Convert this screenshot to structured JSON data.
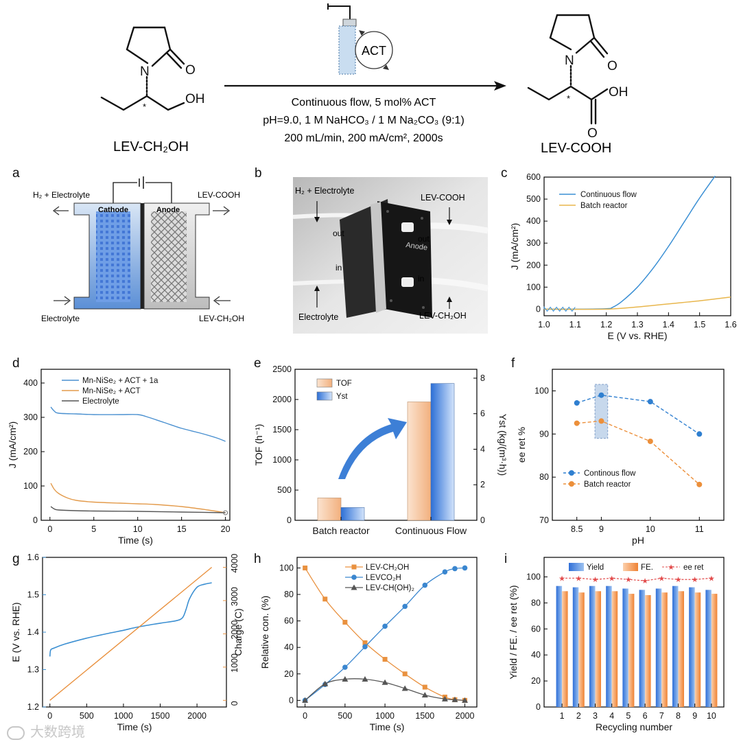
{
  "scheme": {
    "reactant_name": "LEV-CH₂OH",
    "product_name": "LEV-COOH",
    "catalyst_label": "ACT",
    "conditions": [
      "Continuous flow, 5 mol% ACT",
      "pH=9.0, 1 M NaHCO₃ / 1 M Na₂CO₃ (9:1)",
      "200 mL/min, 200 mA/cm², 2000s"
    ],
    "atoms": {
      "n": "N",
      "o": "O",
      "oh": "OH",
      "star": "*"
    }
  },
  "panel_a": {
    "letter": "a",
    "labels": {
      "h2_electrolyte": "H₂ + Electrolyte",
      "lev_cooh": "LEV-COOH",
      "cathode": "Cathode",
      "anode": "Anode",
      "electrolyte": "Electrolyte",
      "lev_ch2oh": "LEV-CH₂OH"
    }
  },
  "panel_b": {
    "letter": "b",
    "labels": {
      "h2_electrolyte": "H₂ + Electrolyte",
      "lev_cooh": "LEV-COOH",
      "out_left": "out",
      "out_right": "out",
      "in_left": "in",
      "in_right": "in",
      "anode": "Anode",
      "electrolyte": "Electrolyte",
      "lev_ch2oh": "LEV-CH₂OH"
    }
  },
  "chart_data": [
    {
      "panel": "c",
      "type": "line",
      "xlabel": "E (V vs. RHE)",
      "ylabel": "J (mA/cm²)",
      "xlim": [
        1.0,
        1.6
      ],
      "ylim": [
        -30,
        600
      ],
      "xticks": [
        "1.0",
        "1.1",
        "1.2",
        "1.3",
        "1.4",
        "1.5",
        "1.6"
      ],
      "yticks": [
        "0",
        "100",
        "200",
        "300",
        "400",
        "500",
        "600"
      ],
      "legend": "top-left",
      "series": [
        {
          "name": "Continuous flow",
          "color": "#3a8fd4",
          "x": [
            1.0,
            1.1,
            1.2,
            1.22,
            1.25,
            1.3,
            1.35,
            1.4,
            1.45,
            1.5,
            1.55
          ],
          "y": [
            0,
            0,
            2,
            8,
            35,
            100,
            185,
            285,
            395,
            505,
            605
          ]
        },
        {
          "name": "Batch reactor",
          "color": "#e8b64c",
          "x": [
            1.0,
            1.2,
            1.3,
            1.4,
            1.5,
            1.6
          ],
          "y": [
            0,
            0,
            10,
            24,
            38,
            55
          ]
        }
      ]
    },
    {
      "panel": "d",
      "type": "line",
      "xlabel": "Time (s)",
      "ylabel": "J (mA/cm²)",
      "xlim": [
        -1,
        20.5
      ],
      "ylim": [
        0,
        440
      ],
      "xticks": [
        "0",
        "5",
        "10",
        "15",
        "20"
      ],
      "yticks": [
        "0",
        "100",
        "200",
        "300",
        "400"
      ],
      "legend": "top-left",
      "series": [
        {
          "name": "Mn-NiSe₂ + ACT + 1a",
          "color": "#4a90d0",
          "x": [
            0.1,
            0.5,
            1,
            3,
            5,
            8,
            10,
            11,
            13,
            15,
            17,
            19,
            20
          ],
          "y": [
            330,
            318,
            312,
            310,
            308,
            308,
            308,
            302,
            285,
            268,
            255,
            240,
            230
          ]
        },
        {
          "name": "Mn-NiSe₂ + ACT",
          "color": "#e39a4a",
          "x": [
            0.1,
            0.5,
            1,
            2,
            3,
            5,
            8,
            10,
            12,
            15,
            18,
            20
          ],
          "y": [
            108,
            90,
            78,
            65,
            58,
            53,
            50,
            48,
            46,
            40,
            30,
            22
          ]
        },
        {
          "name": "Electrolyte",
          "color": "#555555",
          "x": [
            0.1,
            0.5,
            1,
            3,
            5,
            10,
            15,
            20
          ],
          "y": [
            40,
            33,
            30,
            28,
            27,
            26,
            24,
            22
          ]
        }
      ]
    },
    {
      "panel": "e",
      "type": "bar",
      "categories": [
        "Batch reactor",
        "Continuous Flow"
      ],
      "ylabel": "TOF (h⁻¹)",
      "y2label": "Yst (kg/(m³·h))",
      "ylim": [
        0,
        2500
      ],
      "y2lim": [
        0,
        8.5
      ],
      "yticks": [
        "0",
        "500",
        "1000",
        "1500",
        "2000",
        "2500"
      ],
      "y2ticks": [
        "0",
        "2",
        "4",
        "6",
        "8"
      ],
      "legend": "top-left",
      "series": [
        {
          "name": "TOF",
          "axis": "left",
          "color": "#f3b888",
          "values": [
            370,
            1960
          ]
        },
        {
          "name": "Yst",
          "axis": "right",
          "color": "#3f85dd",
          "values": [
            0.72,
            7.7
          ]
        }
      ]
    },
    {
      "panel": "f",
      "type": "line",
      "xlabel": "pH",
      "ylabel": "ee ret %",
      "xlim": [
        8.0,
        11.5
      ],
      "ylim": [
        70,
        105
      ],
      "xticks": [
        "8.5",
        "9",
        "10",
        "11"
      ],
      "yticks": [
        "70",
        "80",
        "90",
        "100"
      ],
      "legend": "bottom-left",
      "highlight": "pH 9",
      "series": [
        {
          "name": "Continous flow",
          "color": "#2f7fd0",
          "x": [
            8.5,
            9,
            10,
            11
          ],
          "y": [
            97.2,
            99,
            97.5,
            90
          ]
        },
        {
          "name": "Batch reactor",
          "color": "#ec8f3a",
          "x": [
            8.5,
            9,
            10,
            11
          ],
          "y": [
            92.5,
            93,
            88.3,
            78.3
          ]
        }
      ]
    },
    {
      "panel": "g",
      "type": "line",
      "xlabel": "Time (s)",
      "ylabel": "E (V vs. RHE)",
      "y2label": "Charge (C)",
      "xlim": [
        -100,
        2400
      ],
      "ylim": [
        1.2,
        1.6
      ],
      "y2lim": [
        -200,
        4300
      ],
      "xticks": [
        "0",
        "500",
        "1000",
        "1500",
        "2000"
      ],
      "yticks": [
        "1.2",
        "1.3",
        "1.4",
        "1.5",
        "1.6"
      ],
      "y2ticks": [
        "0",
        "1000",
        "2000",
        "3000",
        "4000"
      ],
      "series": [
        {
          "name": "E",
          "axis": "left",
          "color": "#3b8fd2",
          "x": [
            0,
            10,
            50,
            200,
            500,
            800,
            1000,
            1200,
            1500,
            1700,
            1800,
            1850,
            1900,
            2000,
            2100,
            2200
          ],
          "y": [
            1.335,
            1.352,
            1.357,
            1.368,
            1.384,
            1.397,
            1.405,
            1.414,
            1.424,
            1.43,
            1.438,
            1.46,
            1.49,
            1.52,
            1.528,
            1.532
          ]
        },
        {
          "name": "Charge",
          "axis": "right",
          "color": "#e9913f",
          "x": [
            0,
            2200
          ],
          "y": [
            0,
            4000
          ]
        }
      ]
    },
    {
      "panel": "h",
      "type": "line",
      "xlabel": "Time (s)",
      "ylabel": "Relative con. (%)",
      "xlim": [
        -100,
        2150
      ],
      "ylim": [
        -5,
        108
      ],
      "xticks": [
        "0",
        "500",
        "1000",
        "1500",
        "2000"
      ],
      "yticks": [
        "0",
        "20",
        "40",
        "60",
        "80",
        "100"
      ],
      "legend": "top-center",
      "series": [
        {
          "name": "LEV-CH₂OH",
          "color": "#e9913f",
          "marker": "square",
          "x": [
            0,
            250,
            500,
            750,
            1000,
            1250,
            1500,
            1750,
            1875,
            2000
          ],
          "y": [
            100,
            76.5,
            59,
            43.5,
            31,
            20,
            10,
            2.5,
            0.5,
            0
          ]
        },
        {
          "name": "LEVCO₂H",
          "color": "#3a86cf",
          "marker": "circle",
          "x": [
            0,
            250,
            500,
            750,
            1000,
            1250,
            1500,
            1750,
            1875,
            2000
          ],
          "y": [
            0,
            12,
            25,
            40.5,
            56,
            71,
            87,
            97,
            99.5,
            100
          ]
        },
        {
          "name": "LEV-CH(OH)₂",
          "color": "#555555",
          "marker": "triangle",
          "x": [
            0,
            250,
            500,
            750,
            1000,
            1250,
            1500,
            1750,
            1875,
            2000
          ],
          "y": [
            0,
            12.5,
            16,
            16,
            13.5,
            9,
            4,
            1,
            0.5,
            0
          ]
        }
      ]
    },
    {
      "panel": "i",
      "type": "bar",
      "categories": [
        "1",
        "2",
        "3",
        "4",
        "5",
        "6",
        "7",
        "8",
        "9",
        "10"
      ],
      "xlabel": "Recycling number",
      "ylabel": "Yield / FE. / ee ret (%)",
      "ylim": [
        0,
        115
      ],
      "yticks": [
        "0",
        "20",
        "40",
        "60",
        "80",
        "100"
      ],
      "legend": "top",
      "series": [
        {
          "name": "Yield",
          "color": "#3f85dd",
          "values": [
            93,
            92,
            93,
            93,
            91,
            90,
            91,
            93,
            92,
            90
          ]
        },
        {
          "name": "FE.",
          "color": "#f08a3c",
          "values": [
            89,
            88,
            89,
            89,
            87,
            86,
            88,
            89,
            88,
            87
          ]
        },
        {
          "name": "ee ret",
          "color": "#e24a4a",
          "type": "line",
          "values": [
            99,
            99,
            98,
            99,
            98,
            97,
            99,
            98,
            98,
            99
          ]
        }
      ]
    }
  ],
  "panel_letters": {
    "c": "c",
    "d": "d",
    "e": "e",
    "f": "f",
    "g": "g",
    "h": "h",
    "i": "i"
  },
  "watermark": "大数跨境"
}
